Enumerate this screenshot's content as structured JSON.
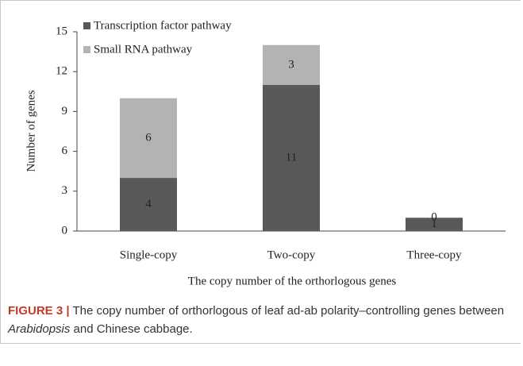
{
  "chart_data": {
    "type": "bar",
    "stacked": true,
    "categories": [
      "Single-copy",
      "Two-copy",
      "Three-copy"
    ],
    "series": [
      {
        "name": "Transcription factor pathway",
        "color": "#595959",
        "values": [
          4,
          11,
          1
        ]
      },
      {
        "name": "Small RNA pathway",
        "color": "#b3b3b3",
        "values": [
          6,
          3,
          0
        ]
      }
    ],
    "xlabel": "The copy number of the orthorlogous genes",
    "ylabel": "Number of genes",
    "ylim": [
      0,
      15
    ],
    "yticks": [
      0,
      3,
      6,
      9,
      12,
      15
    ],
    "legend": "top-left"
  },
  "caption": {
    "label": "FIGURE 3 |",
    "parts": [
      " The copy number of orthorlogous of leaf ad-ab polarity–controlling genes between ",
      "Arabidopsis",
      " and Chinese cabbage."
    ]
  }
}
